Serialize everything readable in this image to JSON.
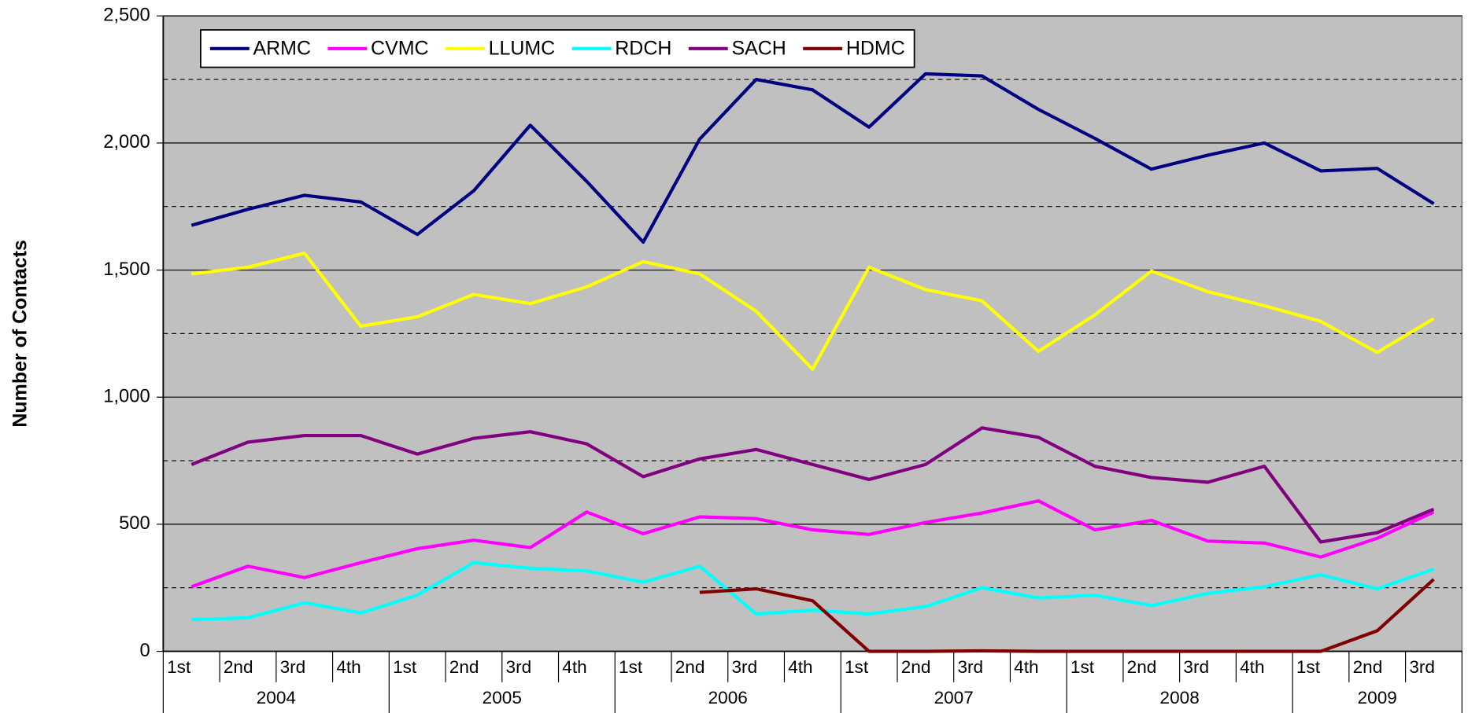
{
  "chart_data": {
    "type": "line",
    "y_label": "Number of Contacts",
    "categories": [
      "1st",
      "2nd",
      "3rd",
      "4th",
      "1st",
      "2nd",
      "3rd",
      "4th",
      "1st",
      "2nd",
      "3rd",
      "4th",
      "1st",
      "2nd",
      "3rd",
      "4th",
      "1st",
      "2nd",
      "3rd",
      "4th",
      "1st",
      "2nd",
      "3rd"
    ],
    "category_groups": [
      "2004",
      "2005",
      "2006",
      "2007",
      "2008",
      "2009"
    ],
    "ylim": [
      0,
      2500
    ],
    "yticks": [
      0,
      500,
      {
        "value": 1000,
        "label": "1,000"
      },
      {
        "value": 1500,
        "label": "1,500"
      },
      {
        "value": 2000,
        "label": "2,000"
      },
      {
        "value": 2500,
        "label": "2,500"
      }
    ],
    "y_minor_gridlines": [
      250,
      750,
      1250,
      1750,
      2250
    ],
    "grid": true,
    "background": "#c0c0c0",
    "legend_position": "top-left",
    "series": [
      {
        "name": "ARMC",
        "color": "#000080",
        "values": [
          1676,
          1739,
          1794,
          1768,
          1640,
          1812,
          2070,
          1849,
          1610,
          2015,
          2250,
          2209,
          2062,
          2272,
          2264,
          2132,
          2018,
          1897,
          1952,
          2000,
          1890,
          1900,
          1761
        ]
      },
      {
        "name": "CVMC",
        "color": "#ff00ff",
        "values": [
          254,
          335,
          290,
          349,
          404,
          437,
          408,
          548,
          463,
          529,
          522,
          478,
          460,
          507,
          544,
          592,
          478,
          515,
          434,
          426,
          371,
          445,
          548
        ]
      },
      {
        "name": "LLUMC",
        "color": "#ffff00",
        "values": [
          1485,
          1511,
          1566,
          1279,
          1316,
          1404,
          1368,
          1434,
          1533,
          1485,
          1338,
          1110,
          1511,
          1423,
          1379,
          1180,
          1324,
          1496,
          1415,
          1360,
          1298,
          1176,
          1309
        ]
      },
      {
        "name": "RDCH",
        "color": "#00ffff",
        "values": [
          125,
          132,
          191,
          151,
          221,
          349,
          327,
          316,
          272,
          335,
          147,
          162,
          147,
          176,
          250,
          210,
          221,
          180,
          228,
          254,
          301,
          246,
          323
        ]
      },
      {
        "name": "SACH",
        "color": "#800080",
        "values": [
          735,
          823,
          849,
          849,
          776,
          838,
          864,
          816,
          687,
          757,
          794,
          735,
          676,
          735,
          879,
          842,
          728,
          684,
          665,
          728,
          430,
          467,
          559
        ]
      },
      {
        "name": "HDMC",
        "color": "#800000",
        "values": [
          null,
          null,
          null,
          null,
          null,
          null,
          null,
          null,
          null,
          232,
          246,
          199,
          0,
          0,
          2,
          0,
          0,
          0,
          0,
          0,
          0,
          81,
          283
        ]
      }
    ]
  }
}
